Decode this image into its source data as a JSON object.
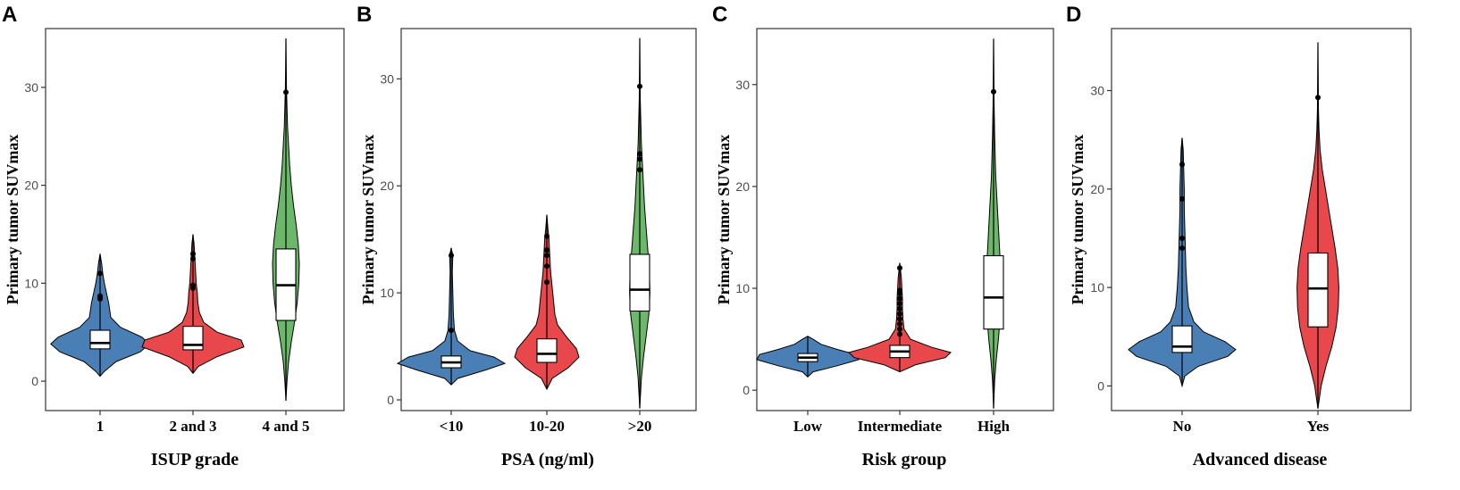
{
  "figure": {
    "colors": {
      "blue": "#4a7fb5",
      "red": "#e8474c",
      "green": "#6cb86a"
    }
  },
  "chart_data": [
    {
      "type": "violin",
      "panel": "A",
      "xlabel": "ISUP grade",
      "ylabel": "Primary tumor SUVmax",
      "ylim": [
        -3,
        36
      ],
      "yticks": [
        0,
        10,
        20,
        30
      ],
      "categories": [
        "1",
        "2 and 3",
        "4 and 5"
      ],
      "groups": [
        {
          "name": "1",
          "color": "blue",
          "min": 0.5,
          "q1": 3.3,
          "median": 3.9,
          "q3": 5.2,
          "max": 13.0,
          "widths": [
            [
              0.5,
              0
            ],
            [
              1,
              0.08
            ],
            [
              2,
              0.3
            ],
            [
              3,
              0.75
            ],
            [
              3.8,
              0.92
            ],
            [
              4.5,
              0.78
            ],
            [
              5.5,
              0.38
            ],
            [
              6.5,
              0.2
            ],
            [
              8,
              0.16
            ],
            [
              9,
              0.12
            ],
            [
              10,
              0.08
            ],
            [
              11,
              0.05
            ],
            [
              12,
              0.03
            ],
            [
              13,
              0
            ]
          ],
          "outliers": [
            8.4,
            8.6,
            8.7,
            11.0
          ]
        },
        {
          "name": "2 and 3",
          "color": "red",
          "min": 0.8,
          "q1": 3.2,
          "median": 3.7,
          "q3": 5.6,
          "max": 15.0,
          "widths": [
            [
              0.8,
              0
            ],
            [
              1.5,
              0.1
            ],
            [
              2.5,
              0.45
            ],
            [
              3.5,
              0.95
            ],
            [
              4.2,
              0.9
            ],
            [
              5,
              0.45
            ],
            [
              6,
              0.2
            ],
            [
              7,
              0.12
            ],
            [
              8,
              0.09
            ],
            [
              9,
              0.08
            ],
            [
              10,
              0.06
            ],
            [
              11,
              0.05
            ],
            [
              12,
              0.04
            ],
            [
              13,
              0.03
            ],
            [
              14,
              0.02
            ],
            [
              15,
              0
            ]
          ],
          "outliers": [
            9.5,
            9.8,
            12.5,
            13.0
          ]
        },
        {
          "name": "4 and 5",
          "color": "green",
          "min": -2.0,
          "q1": 6.2,
          "median": 9.8,
          "q3": 13.5,
          "max": 35.0,
          "widths": [
            [
              -2,
              0
            ],
            [
              0,
              0.02
            ],
            [
              2,
              0.05
            ],
            [
              4,
              0.1
            ],
            [
              6,
              0.16
            ],
            [
              8,
              0.21
            ],
            [
              10,
              0.24
            ],
            [
              12,
              0.25
            ],
            [
              14,
              0.23
            ],
            [
              16,
              0.19
            ],
            [
              18,
              0.14
            ],
            [
              20,
              0.1
            ],
            [
              22,
              0.07
            ],
            [
              24,
              0.05
            ],
            [
              26,
              0.03
            ],
            [
              28,
              0.02
            ],
            [
              30,
              0.01
            ],
            [
              35,
              0
            ]
          ],
          "outliers": [
            29.5
          ]
        }
      ]
    },
    {
      "type": "violin",
      "panel": "B",
      "xlabel": "PSA (ng/ml)",
      "ylabel": "Primary tumor SUVmax",
      "ylim": [
        -1,
        34.7
      ],
      "yticks": [
        0,
        10,
        20,
        30
      ],
      "categories": [
        "<10",
        "10-20",
        ">20"
      ],
      "groups": [
        {
          "name": "<10",
          "color": "blue",
          "min": 1.4,
          "q1": 3.0,
          "median": 3.5,
          "q3": 4.1,
          "max": 14.2,
          "widths": [
            [
              1.4,
              0
            ],
            [
              2,
              0.12
            ],
            [
              2.8,
              0.65
            ],
            [
              3.4,
              1.0
            ],
            [
              4,
              0.8
            ],
            [
              4.6,
              0.35
            ],
            [
              5.5,
              0.12
            ],
            [
              6.5,
              0.06
            ],
            [
              8,
              0.04
            ],
            [
              10,
              0.03
            ],
            [
              12,
              0.02
            ],
            [
              13.5,
              0.03
            ],
            [
              14.2,
              0
            ]
          ],
          "outliers": [
            6.5,
            13.5
          ]
        },
        {
          "name": "10-20",
          "color": "red",
          "min": 1.0,
          "q1": 3.5,
          "median": 4.3,
          "q3": 5.7,
          "max": 17.3,
          "widths": [
            [
              1,
              0
            ],
            [
              2,
              0.1
            ],
            [
              3,
              0.4
            ],
            [
              4,
              0.6
            ],
            [
              4.8,
              0.55
            ],
            [
              6,
              0.35
            ],
            [
              7,
              0.2
            ],
            [
              8,
              0.15
            ],
            [
              9,
              0.13
            ],
            [
              10,
              0.11
            ],
            [
              11,
              0.09
            ],
            [
              12,
              0.07
            ],
            [
              13,
              0.06
            ],
            [
              14,
              0.05
            ],
            [
              15,
              0.04
            ],
            [
              16,
              0.02
            ],
            [
              17.3,
              0
            ]
          ],
          "outliers": [
            11.0,
            12.5,
            13.5,
            14.0,
            15.3
          ]
        },
        {
          "name": ">20",
          "color": "green",
          "min": -0.8,
          "q1": 8.3,
          "median": 10.3,
          "q3": 13.6,
          "max": 33.8,
          "widths": [
            [
              -0.8,
              0
            ],
            [
              2,
              0.03
            ],
            [
              4,
              0.07
            ],
            [
              6,
              0.12
            ],
            [
              8,
              0.17
            ],
            [
              10,
              0.19
            ],
            [
              12,
              0.18
            ],
            [
              14,
              0.15
            ],
            [
              16,
              0.12
            ],
            [
              18,
              0.09
            ],
            [
              20,
              0.07
            ],
            [
              22,
              0.05
            ],
            [
              24,
              0.03
            ],
            [
              26,
              0.02
            ],
            [
              28,
              0.01
            ],
            [
              33.8,
              0
            ]
          ],
          "outliers": [
            21.5,
            22.5,
            23.0,
            29.3
          ]
        }
      ]
    },
    {
      "type": "violin",
      "panel": "C",
      "xlabel": "Risk group",
      "ylabel": "Primary tumor SUVmax",
      "ylim": [
        -2,
        35.5
      ],
      "yticks": [
        0,
        10,
        20,
        30
      ],
      "categories": [
        "Low",
        "Intermediate",
        "High"
      ],
      "groups": [
        {
          "name": "Low",
          "color": "blue",
          "min": 1.3,
          "q1": 2.8,
          "median": 3.2,
          "q3": 3.6,
          "max": 5.3,
          "widths": [
            [
              1.3,
              0
            ],
            [
              1.8,
              0.1
            ],
            [
              2.4,
              0.55
            ],
            [
              3,
              0.95
            ],
            [
              3.5,
              0.9
            ],
            [
              4,
              0.55
            ],
            [
              4.5,
              0.25
            ],
            [
              5,
              0.1
            ],
            [
              5.3,
              0
            ]
          ],
          "outliers": []
        },
        {
          "name": "Intermediate",
          "color": "red",
          "min": 1.8,
          "q1": 3.2,
          "median": 3.8,
          "q3": 4.4,
          "max": 12.5,
          "widths": [
            [
              1.8,
              0
            ],
            [
              2.5,
              0.3
            ],
            [
              3.2,
              0.85
            ],
            [
              3.7,
              0.95
            ],
            [
              4.2,
              0.6
            ],
            [
              5,
              0.2
            ],
            [
              6,
              0.08
            ],
            [
              7,
              0.06
            ],
            [
              8,
              0.05
            ],
            [
              9,
              0.05
            ],
            [
              10,
              0.04
            ],
            [
              11,
              0.03
            ],
            [
              12.5,
              0
            ]
          ],
          "outliers": [
            5.5,
            6.0,
            6.5,
            7.0,
            7.5,
            8.0,
            8.5,
            9.0,
            9.5,
            9.8,
            12.0
          ]
        },
        {
          "name": "High",
          "color": "green",
          "min": -1.8,
          "q1": 6.0,
          "median": 9.1,
          "q3": 13.2,
          "max": 34.5,
          "widths": [
            [
              -1.8,
              0
            ],
            [
              1,
              0.02
            ],
            [
              3,
              0.05
            ],
            [
              5,
              0.09
            ],
            [
              7,
              0.12
            ],
            [
              9,
              0.13
            ],
            [
              11,
              0.13
            ],
            [
              13,
              0.12
            ],
            [
              15,
              0.1
            ],
            [
              17,
              0.08
            ],
            [
              19,
              0.06
            ],
            [
              21,
              0.04
            ],
            [
              23,
              0.03
            ],
            [
              25,
              0.02
            ],
            [
              28,
              0.01
            ],
            [
              34.5,
              0
            ]
          ],
          "outliers": [
            29.3
          ]
        }
      ]
    },
    {
      "type": "violin",
      "panel": "D",
      "xlabel": "Advanced disease",
      "ylabel": "Primary tumor SUVmax",
      "ylim": [
        -2.5,
        36.3
      ],
      "yticks": [
        0,
        10,
        20,
        30
      ],
      "categories": [
        "No",
        "Yes"
      ],
      "groups": [
        {
          "name": "No",
          "color": "blue",
          "min": 0.0,
          "q1": 3.4,
          "median": 4.0,
          "q3": 6.1,
          "max": 25.2,
          "widths": [
            [
              0,
              0
            ],
            [
              1,
              0.05
            ],
            [
              2,
              0.3
            ],
            [
              3,
              0.85
            ],
            [
              3.7,
              1.0
            ],
            [
              4.5,
              0.8
            ],
            [
              5.5,
              0.4
            ],
            [
              6.5,
              0.22
            ],
            [
              8,
              0.12
            ],
            [
              10,
              0.09
            ],
            [
              12,
              0.07
            ],
            [
              14,
              0.06
            ],
            [
              16,
              0.05
            ],
            [
              18,
              0.04
            ],
            [
              20,
              0.04
            ],
            [
              22,
              0.03
            ],
            [
              24,
              0.02
            ],
            [
              25.2,
              0
            ]
          ],
          "outliers": [
            14.0,
            15.0,
            19.0,
            22.5
          ]
        },
        {
          "name": "Yes",
          "color": "red",
          "min": -2.3,
          "q1": 6.0,
          "median": 9.9,
          "q3": 13.5,
          "max": 34.9,
          "widths": [
            [
              -2.3,
              0
            ],
            [
              0,
              0.06
            ],
            [
              2,
              0.15
            ],
            [
              4,
              0.26
            ],
            [
              6,
              0.34
            ],
            [
              8,
              0.38
            ],
            [
              10,
              0.39
            ],
            [
              12,
              0.37
            ],
            [
              14,
              0.32
            ],
            [
              16,
              0.26
            ],
            [
              18,
              0.2
            ],
            [
              20,
              0.14
            ],
            [
              22,
              0.08
            ],
            [
              24,
              0.04
            ],
            [
              26,
              0.02
            ],
            [
              28,
              0.01
            ],
            [
              34.9,
              0
            ]
          ],
          "outliers": [
            29.3
          ]
        }
      ]
    }
  ]
}
